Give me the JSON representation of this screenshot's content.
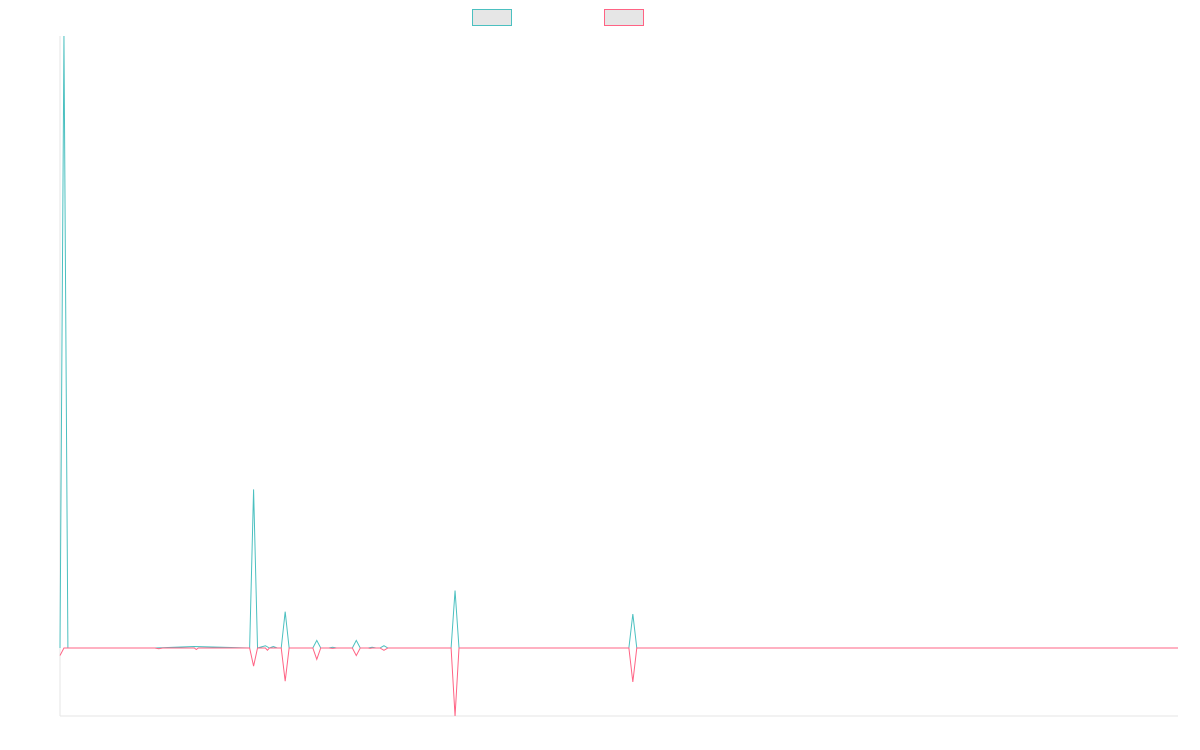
{
  "chart_data": {
    "type": "line",
    "title": "",
    "xlabel": "",
    "ylabel": "",
    "grid": false,
    "legend_placement": "top-center",
    "x_count": 284,
    "ylim": [
      -9,
      81
    ],
    "baseline": 0,
    "series": [
      {
        "name": "",
        "color": "#4bc0c0",
        "fill": false,
        "points": [
          [
            0,
            0
          ],
          [
            1,
            81
          ],
          [
            2,
            0
          ],
          [
            24,
            0
          ],
          [
            34,
            0.2
          ],
          [
            48,
            0
          ],
          [
            49,
            21
          ],
          [
            50,
            0
          ],
          [
            52,
            0.3
          ],
          [
            53,
            0
          ],
          [
            54,
            0.2
          ],
          [
            55,
            0
          ],
          [
            56,
            0
          ],
          [
            57,
            4.8
          ],
          [
            58,
            0
          ],
          [
            64,
            0
          ],
          [
            65,
            1
          ],
          [
            66,
            0
          ],
          [
            68,
            0
          ],
          [
            69,
            0.1
          ],
          [
            70,
            0
          ],
          [
            74,
            0
          ],
          [
            75,
            1
          ],
          [
            76,
            0
          ],
          [
            78,
            0
          ],
          [
            79,
            0.1
          ],
          [
            80,
            0
          ],
          [
            81,
            0
          ],
          [
            82,
            0.3
          ],
          [
            83,
            0
          ],
          [
            99,
            0
          ],
          [
            100,
            7.6
          ],
          [
            101,
            0
          ],
          [
            144,
            0
          ],
          [
            145,
            4.5
          ],
          [
            146,
            0
          ],
          [
            283,
            0
          ]
        ]
      },
      {
        "name": "",
        "color": "#ff6384",
        "fill": false,
        "points": [
          [
            0,
            -1
          ],
          [
            1,
            0
          ],
          [
            24,
            0
          ],
          [
            25,
            -0.1
          ],
          [
            26,
            0
          ],
          [
            34,
            0
          ],
          [
            34.5,
            -0.2
          ],
          [
            35,
            0
          ],
          [
            48,
            0
          ],
          [
            49,
            -2.4
          ],
          [
            50,
            0
          ],
          [
            52,
            0
          ],
          [
            52.5,
            -0.3
          ],
          [
            53,
            0
          ],
          [
            56,
            0
          ],
          [
            57,
            -4.4
          ],
          [
            58,
            0
          ],
          [
            64,
            0
          ],
          [
            65,
            -1.5
          ],
          [
            66,
            0
          ],
          [
            68,
            0
          ],
          [
            69,
            -0.05
          ],
          [
            70,
            0
          ],
          [
            74,
            0
          ],
          [
            75,
            -1
          ],
          [
            76,
            0
          ],
          [
            78,
            0
          ],
          [
            78.5,
            -0.05
          ],
          [
            79,
            0
          ],
          [
            81,
            0
          ],
          [
            82,
            -0.3
          ],
          [
            83,
            0
          ],
          [
            99,
            0
          ],
          [
            100,
            -9
          ],
          [
            101,
            0
          ],
          [
            144,
            0
          ],
          [
            145,
            -4.5
          ],
          [
            146,
            0
          ],
          [
            283,
            0
          ]
        ]
      }
    ]
  }
}
